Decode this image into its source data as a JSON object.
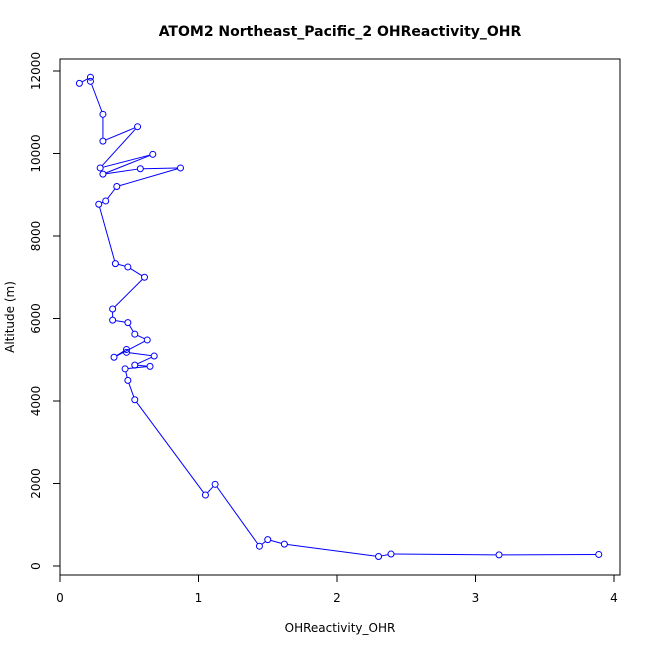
{
  "chart_data": {
    "type": "line",
    "title": "ATOM2 Northeast_Pacific_2 OHReactivity_OHR",
    "xlabel": "OHReactivity_OHR",
    "ylabel": "Altitude (m)",
    "xlim": [
      0,
      4
    ],
    "ylim": [
      0,
      12000
    ],
    "x_ticks": [
      0,
      1,
      2,
      3,
      4
    ],
    "y_ticks": [
      0,
      2000,
      4000,
      6000,
      8000,
      10000,
      12000
    ],
    "grid": false,
    "series_color": "#0000ff",
    "series": [
      {
        "points": [
          [
            0.14,
            11700
          ],
          [
            0.22,
            11850
          ],
          [
            0.22,
            11750
          ],
          [
            0.31,
            10950
          ],
          [
            0.31,
            10300
          ],
          [
            0.56,
            10650
          ],
          [
            0.29,
            9650
          ],
          [
            0.67,
            9980
          ],
          [
            0.31,
            9500
          ],
          [
            0.58,
            9630
          ],
          [
            0.87,
            9650
          ],
          [
            0.41,
            9200
          ],
          [
            0.33,
            8850
          ],
          [
            0.28,
            8770
          ],
          [
            0.4,
            7330
          ],
          [
            0.49,
            7250
          ],
          [
            0.61,
            7000
          ],
          [
            0.38,
            6230
          ],
          [
            0.38,
            5960
          ],
          [
            0.49,
            5900
          ],
          [
            0.54,
            5620
          ],
          [
            0.63,
            5480
          ],
          [
            0.39,
            5060
          ],
          [
            0.48,
            5250
          ],
          [
            0.48,
            5180
          ],
          [
            0.68,
            5090
          ],
          [
            0.54,
            4870
          ],
          [
            0.65,
            4840
          ],
          [
            0.47,
            4780
          ],
          [
            0.49,
            4500
          ],
          [
            0.54,
            4030
          ],
          [
            1.05,
            1720
          ],
          [
            1.12,
            1980
          ],
          [
            1.44,
            480
          ],
          [
            1.5,
            640
          ],
          [
            1.62,
            530
          ],
          [
            2.3,
            230
          ],
          [
            2.39,
            290
          ],
          [
            3.17,
            270
          ],
          [
            3.89,
            280
          ]
        ]
      }
    ]
  }
}
